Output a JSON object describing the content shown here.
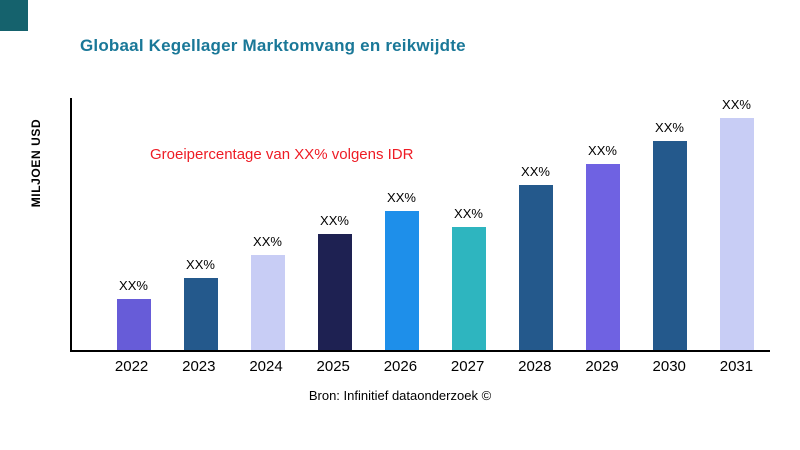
{
  "page": {
    "title": "Globaal Kegellager Marktomvang en reikwijdte",
    "title_color": "#1a7898",
    "ylabel": "MILJOEN USD",
    "annotation": "Groeipercentage van XX% volgens IDR",
    "annotation_color": "#ee1c25",
    "source": "Bron: Infinitief dataonderzoek ©",
    "brand_square_color": "#15626d"
  },
  "chart_data": {
    "type": "bar",
    "title": "Globaal Kegellager Marktomvang en reikwijdte",
    "xlabel": "",
    "ylabel": "MILJOEN USD",
    "categories": [
      "2022",
      "2023",
      "2024",
      "2025",
      "2026",
      "2027",
      "2028",
      "2029",
      "2030",
      "2031"
    ],
    "values": [
      22,
      31,
      41,
      50,
      60,
      53,
      71,
      80,
      90,
      100
    ],
    "value_labels": [
      "XX%",
      "XX%",
      "XX%",
      "XX%",
      "XX%",
      "XX%",
      "XX%",
      "XX%",
      "XX%",
      "XX%"
    ],
    "bar_colors": [
      "#675cd8",
      "#24598c",
      "#c8cdf5",
      "#1e2152",
      "#1e8fea",
      "#2eb5bf",
      "#24598c",
      "#6f62e2",
      "#24598c",
      "#c8cdf5"
    ],
    "ylim": [
      0,
      110
    ],
    "grid": false,
    "legend": "none",
    "annotation": "Groeipercentage van XX% volgens IDR",
    "source": "Bron: Infinitief dataonderzoek ©",
    "note": "Numeric values are not printed on the chart; every bar is labeled XX%. Values above are relative heights estimated from pixels (max bar = 100)."
  }
}
